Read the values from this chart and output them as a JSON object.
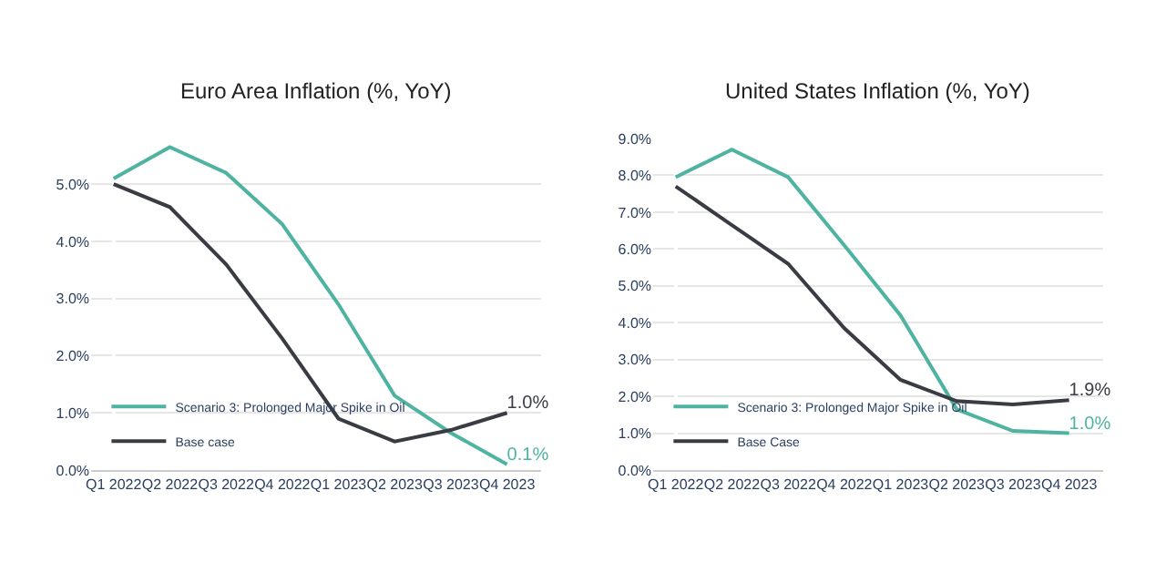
{
  "chart_data": [
    {
      "type": "line",
      "title": "Euro Area Inflation (%, YoY)",
      "categories": [
        "Q1 2022",
        "Q2 2022",
        "Q3 2022",
        "Q4 2022",
        "Q1 2023",
        "Q2 2023",
        "Q3 2023",
        "Q4 2023"
      ],
      "ylim": [
        0,
        5.8
      ],
      "yticks": [
        {
          "value": 0,
          "label": "0.0%"
        },
        {
          "value": 1,
          "label": "1.0%"
        },
        {
          "value": 2,
          "label": "2.0%"
        },
        {
          "value": 3,
          "label": "3.0%"
        },
        {
          "value": 4,
          "label": "4.0%"
        },
        {
          "value": 5,
          "label": "5.0%"
        }
      ],
      "grid": "y",
      "legend": "bottom left",
      "marker": "none",
      "series": [
        {
          "name": "Scenario 3: Prolonged Major Spike in Oil",
          "color": "#4fb3a2",
          "values": [
            5.1,
            5.65,
            5.2,
            4.3,
            2.9,
            1.3,
            0.65,
            0.1
          ],
          "value_labels": [
            null,
            null,
            null,
            null,
            null,
            null,
            null,
            "0.1%"
          ]
        },
        {
          "name": "Base case",
          "color": "#3a3c44",
          "values": [
            5.0,
            4.6,
            3.6,
            2.3,
            0.9,
            0.5,
            0.7,
            1.0
          ],
          "value_labels": [
            null,
            null,
            null,
            null,
            null,
            null,
            null,
            "1.0%"
          ]
        }
      ]
    },
    {
      "type": "line",
      "title": "United States Inflation (%, YoY)",
      "categories": [
        "Q1 2022",
        "Q2 2022",
        "Q3 2022",
        "Q4 2022",
        "Q1 2023",
        "Q2 2023",
        "Q3 2023",
        "Q4 2023"
      ],
      "ylim": [
        0,
        9
      ],
      "yticks": [
        {
          "value": 0,
          "label": "0.0%"
        },
        {
          "value": 1,
          "label": "1.0%"
        },
        {
          "value": 2,
          "label": "2.0%"
        },
        {
          "value": 3,
          "label": "3.0%"
        },
        {
          "value": 4,
          "label": "4.0%"
        },
        {
          "value": 5,
          "label": "5.0%"
        },
        {
          "value": 6,
          "label": "6.0%"
        },
        {
          "value": 7,
          "label": "7.0%"
        },
        {
          "value": 8,
          "label": "8.0%"
        },
        {
          "value": 9,
          "label": "9.0%"
        }
      ],
      "grid": "y",
      "legend": "bottom left",
      "marker": "none",
      "series": [
        {
          "name": "Scenario 3: Prolonged Major Spike in Oil",
          "color": "#4fb3a2",
          "values": [
            7.95,
            8.7,
            7.95,
            6.1,
            4.2,
            1.65,
            1.06,
            1.0
          ],
          "value_labels": [
            null,
            null,
            null,
            null,
            null,
            null,
            null,
            "1.0%"
          ]
        },
        {
          "name": "Base Case",
          "color": "#3a3c44",
          "values": [
            7.7,
            6.65,
            5.6,
            3.85,
            2.45,
            1.87,
            1.78,
            1.9
          ],
          "value_labels": [
            null,
            null,
            null,
            null,
            null,
            null,
            null,
            "1.9%"
          ]
        }
      ]
    }
  ]
}
